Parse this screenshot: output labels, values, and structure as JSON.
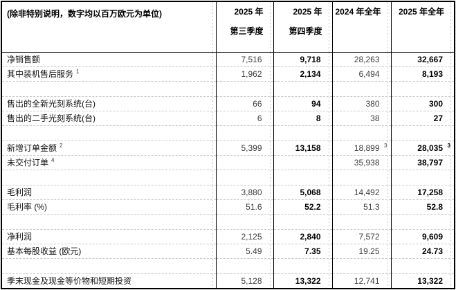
{
  "table": {
    "unit_note": "(除非特别说明，数字均以百万欧元为单位)",
    "columns": [
      {
        "line1": "2025 年",
        "line2": "第三季度",
        "bold": false
      },
      {
        "line1": "2025 年",
        "line2": "第四季度",
        "bold": true
      },
      {
        "line1": "2024 年全年",
        "line2": "",
        "bold": false
      },
      {
        "line1": "2025 年全年",
        "line2": "",
        "bold": true
      }
    ],
    "rows": [
      {
        "label": "净销售额",
        "values": [
          "7,516",
          "9,718",
          "28,263",
          "32,667"
        ]
      },
      {
        "label": "其中装机售后服务",
        "label_sup": "1",
        "values": [
          "1,962",
          "2,134",
          "6,494",
          "8,193"
        ]
      },
      {
        "blank": true
      },
      {
        "label": "售出的全新光刻系统(台)",
        "values": [
          "66",
          "94",
          "380",
          "300"
        ]
      },
      {
        "label": "售出的二手光刻系统(台)",
        "values": [
          "6",
          "8",
          "38",
          "27"
        ]
      },
      {
        "blank": true
      },
      {
        "label": "新增订单金额",
        "label_sup": "2",
        "values": [
          "5,399",
          "13,158",
          "18,899",
          "28,035"
        ],
        "value_sups": [
          "",
          "",
          "3",
          "3"
        ]
      },
      {
        "label": "未交付订单",
        "label_sup": "4",
        "values": [
          "",
          "",
          "35,938",
          "38,797"
        ]
      },
      {
        "blank": true
      },
      {
        "label": "毛利润",
        "values": [
          "3,880",
          "5,068",
          "14,492",
          "17,258"
        ]
      },
      {
        "label": "毛利率 (%)",
        "values": [
          "51.6",
          "52.2",
          "51.3",
          "52.8"
        ]
      },
      {
        "blank": true
      },
      {
        "label": "净利润",
        "values": [
          "2,125",
          "2,840",
          "7,572",
          "9,609"
        ]
      },
      {
        "label": "基本每股收益 (欧元)",
        "values": [
          "5.49",
          "7.35",
          "19.25",
          "24.73"
        ]
      },
      {
        "blank": true
      },
      {
        "label": "季末现金及现金等价物和短期投资",
        "values": [
          "5,128",
          "13,322",
          "12,741",
          "13,322"
        ]
      }
    ],
    "colors": {
      "border": "#000000",
      "gridline": "#c7c7c7",
      "text_regular": "#3d3d3d",
      "text_bold": "#000000"
    }
  }
}
